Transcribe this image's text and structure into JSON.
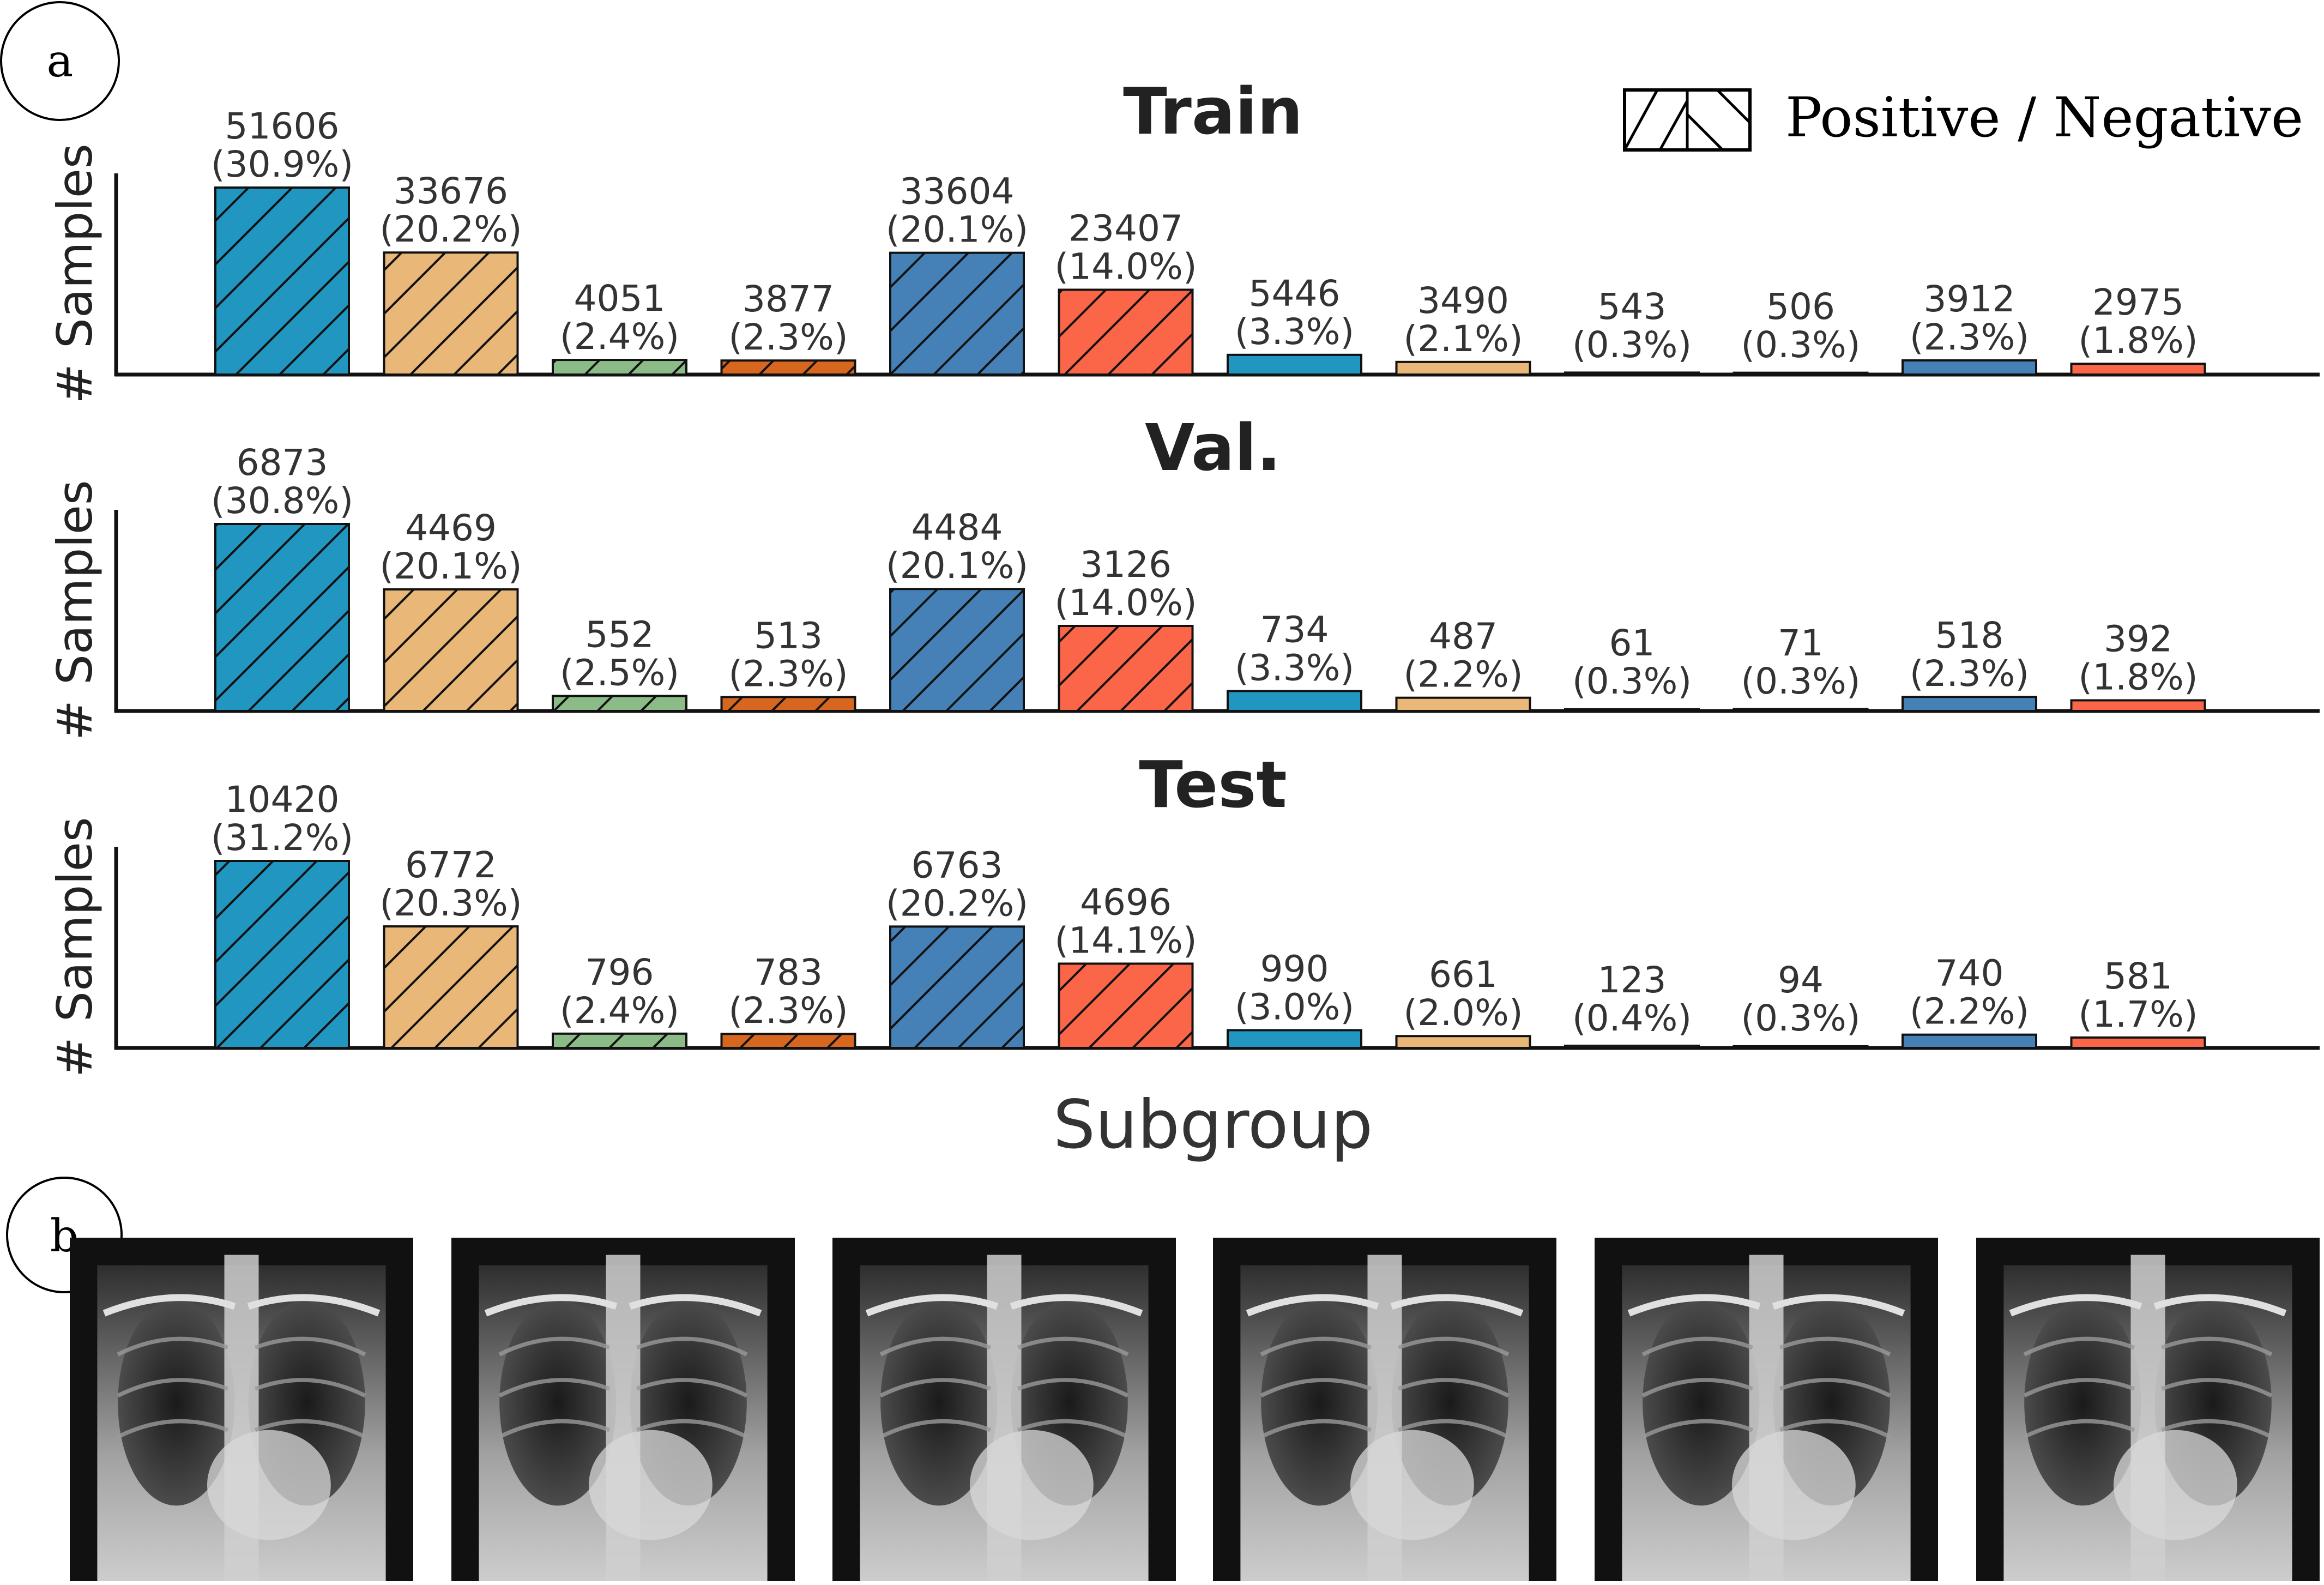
{
  "panel_labels": {
    "a": "a",
    "b": "b"
  },
  "legend": {
    "label": "Positive / Negative"
  },
  "colors": {
    "teal": "#2196c0",
    "tan": "#e9b778",
    "green": "#8bbb87",
    "rust": "#d7661e",
    "blue": "#4580b6",
    "coral": "#fb6649"
  },
  "chart_data": [
    {
      "type": "bar",
      "title": "Train",
      "ylabel": "# Samples",
      "xlabel": "",
      "colors": [
        "teal",
        "tan",
        "green",
        "rust",
        "blue",
        "coral",
        "teal",
        "tan",
        "green",
        "rust",
        "blue",
        "coral"
      ],
      "values": [
        51606,
        33676,
        4051,
        3877,
        33604,
        23407,
        5446,
        3490,
        543,
        506,
        3912,
        2975
      ],
      "percent_labels": [
        "(30.9%)",
        "(20.2%)",
        "(2.4%)",
        "(2.3%)",
        "(20.1%)",
        "(14.0%)",
        "(3.3%)",
        "(2.1%)",
        "(0.3%)",
        "(0.3%)",
        "(2.3%)",
        "(1.8%)"
      ],
      "hatched": [
        true,
        true,
        true,
        true,
        true,
        true,
        false,
        false,
        false,
        false,
        false,
        false
      ]
    },
    {
      "type": "bar",
      "title": "Val.",
      "ylabel": "# Samples",
      "xlabel": "",
      "colors": [
        "teal",
        "tan",
        "green",
        "rust",
        "blue",
        "coral",
        "teal",
        "tan",
        "green",
        "rust",
        "blue",
        "coral"
      ],
      "values": [
        6873,
        4469,
        552,
        513,
        4484,
        3126,
        734,
        487,
        61,
        71,
        518,
        392
      ],
      "percent_labels": [
        "(30.8%)",
        "(20.1%)",
        "(2.5%)",
        "(2.3%)",
        "(20.1%)",
        "(14.0%)",
        "(3.3%)",
        "(2.2%)",
        "(0.3%)",
        "(0.3%)",
        "(2.3%)",
        "(1.8%)"
      ],
      "hatched": [
        true,
        true,
        true,
        true,
        true,
        true,
        false,
        false,
        false,
        false,
        false,
        false
      ]
    },
    {
      "type": "bar",
      "title": "Test",
      "ylabel": "# Samples",
      "xlabel": "Subgroup",
      "colors": [
        "teal",
        "tan",
        "green",
        "rust",
        "blue",
        "coral",
        "teal",
        "tan",
        "green",
        "rust",
        "blue",
        "coral"
      ],
      "values": [
        10420,
        6772,
        796,
        783,
        6763,
        4696,
        990,
        661,
        123,
        94,
        740,
        581
      ],
      "percent_labels": [
        "(31.2%)",
        "(20.3%)",
        "(2.4%)",
        "(2.3%)",
        "(20.2%)",
        "(14.1%)",
        "(3.0%)",
        "(2.0%)",
        "(0.4%)",
        "(0.3%)",
        "(2.2%)",
        "(1.7%)"
      ],
      "hatched": [
        true,
        true,
        true,
        true,
        true,
        true,
        false,
        false,
        false,
        false,
        false,
        false
      ]
    }
  ],
  "xray_images": [
    {
      "name": "chest-xray-1"
    },
    {
      "name": "chest-xray-2"
    },
    {
      "name": "chest-xray-3"
    },
    {
      "name": "chest-xray-4"
    },
    {
      "name": "chest-xray-5"
    },
    {
      "name": "chest-xray-6"
    }
  ]
}
